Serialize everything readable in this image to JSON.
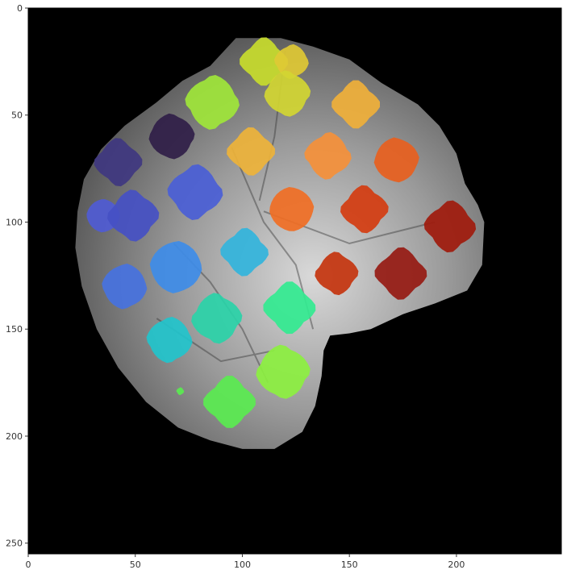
{
  "axes": {
    "x_ticks": [
      {
        "value": 0,
        "label": "0"
      },
      {
        "value": 50,
        "label": "50"
      },
      {
        "value": 100,
        "label": "100"
      },
      {
        "value": 150,
        "label": "150"
      },
      {
        "value": 200,
        "label": "200"
      }
    ],
    "y_ticks": [
      {
        "value": 0,
        "label": "0"
      },
      {
        "value": 50,
        "label": "50"
      },
      {
        "value": 100,
        "label": "100"
      },
      {
        "value": 150,
        "label": "150"
      },
      {
        "value": 200,
        "label": "200"
      },
      {
        "value": 250,
        "label": "250"
      }
    ],
    "x_range": [
      0,
      249
    ],
    "y_range": [
      0,
      255
    ]
  },
  "image": {
    "background": "#000000",
    "brain_colors": [
      "#5b5b5b",
      "#9a9a9a",
      "#d9d9d9"
    ]
  },
  "rois": [
    {
      "x": 110,
      "y": 25,
      "r": 12,
      "color": "#c8dc2c"
    },
    {
      "x": 123,
      "y": 25,
      "r": 9,
      "color": "#e0c934"
    },
    {
      "x": 121,
      "y": 40,
      "r": 12,
      "color": "#d2d632"
    },
    {
      "x": 153,
      "y": 45,
      "r": 12,
      "color": "#f0b03a"
    },
    {
      "x": 86,
      "y": 44,
      "r": 14,
      "color": "#a0e63a"
    },
    {
      "x": 67,
      "y": 60,
      "r": 12,
      "color": "#301e48"
    },
    {
      "x": 104,
      "y": 67,
      "r": 12,
      "color": "#eeb33a"
    },
    {
      "x": 140,
      "y": 69,
      "r": 12,
      "color": "#f5903a"
    },
    {
      "x": 172,
      "y": 71,
      "r": 12,
      "color": "#e8601e"
    },
    {
      "x": 42,
      "y": 72,
      "r": 12,
      "color": "#3f3780"
    },
    {
      "x": 78,
      "y": 86,
      "r": 14,
      "color": "#4a5ed6"
    },
    {
      "x": 123,
      "y": 94,
      "r": 12,
      "color": "#f06e24"
    },
    {
      "x": 157,
      "y": 94,
      "r": 12,
      "color": "#d43c10"
    },
    {
      "x": 197,
      "y": 102,
      "r": 13,
      "color": "#a01a0c"
    },
    {
      "x": 35,
      "y": 97,
      "r": 9,
      "color": "#4f5bd4"
    },
    {
      "x": 49,
      "y": 97,
      "r": 13,
      "color": "#4550c4"
    },
    {
      "x": 101,
      "y": 114,
      "r": 12,
      "color": "#32b4dc"
    },
    {
      "x": 69,
      "y": 121,
      "r": 14,
      "color": "#3e8ce8"
    },
    {
      "x": 144,
      "y": 124,
      "r": 11,
      "color": "#c4340e"
    },
    {
      "x": 174,
      "y": 124,
      "r": 13,
      "color": "#961a12"
    },
    {
      "x": 45,
      "y": 130,
      "r": 12,
      "color": "#4672e0"
    },
    {
      "x": 88,
      "y": 145,
      "r": 13,
      "color": "#2ad2a8"
    },
    {
      "x": 122,
      "y": 140,
      "r": 13,
      "color": "#32ea90"
    },
    {
      "x": 66,
      "y": 155,
      "r": 12,
      "color": "#22c4cc"
    },
    {
      "x": 119,
      "y": 170,
      "r": 14,
      "color": "#8cf040"
    },
    {
      "x": 94,
      "y": 184,
      "r": 13,
      "color": "#5aec50"
    },
    {
      "x": 71,
      "y": 179,
      "r": 2,
      "color": "#5aec50"
    }
  ]
}
